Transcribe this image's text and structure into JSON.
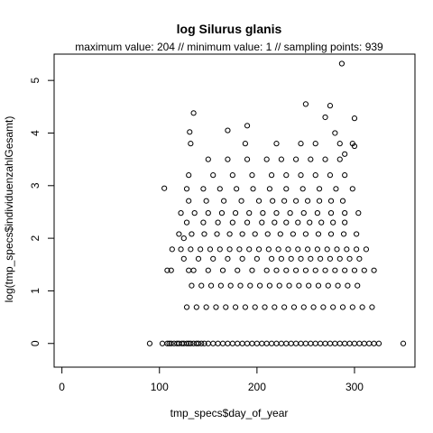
{
  "chart_data": {
    "type": "scatter",
    "title": "log Silurus glanis",
    "subtitle": "maximum value: 204  //  minimum value: 1  // sampling points: 939",
    "xlabel": "tmp_specs$day_of_year",
    "ylabel": "log(tmp_specs$individuenzahlGesamt)",
    "xlim": [
      -8,
      362
    ],
    "ylim": [
      -0.45,
      5.5
    ],
    "xticks": [
      0,
      100,
      200,
      300
    ],
    "yticks": [
      0,
      1,
      2,
      3,
      4,
      5
    ],
    "grid": false,
    "legend": "none",
    "point_color": "#000000",
    "series": [
      {
        "x": [
          90,
          103,
          108,
          110,
          112,
          115,
          118,
          120,
          123,
          125,
          128,
          130,
          132,
          135,
          138,
          140,
          143,
          146,
          150,
          155,
          160,
          165,
          170,
          175,
          180,
          185,
          190,
          195,
          200,
          205,
          210,
          215,
          220,
          225,
          230,
          235,
          240,
          245,
          250,
          255,
          260,
          265,
          270,
          275,
          280,
          285,
          290,
          295,
          300,
          305,
          310,
          315,
          320,
          325,
          350,
          128,
          138,
          148,
          158,
          168,
          178,
          188,
          198,
          208,
          218,
          228,
          238,
          248,
          258,
          268,
          278,
          288,
          298,
          308,
          318,
          133,
          143,
          153,
          163,
          173,
          183,
          193,
          203,
          213,
          223,
          233,
          243,
          253,
          263,
          273,
          283,
          293,
          303,
          108,
          112,
          130,
          135,
          150,
          165,
          180,
          195,
          210,
          220,
          230,
          240,
          250,
          260,
          270,
          280,
          290,
          300,
          310,
          320,
          125,
          140,
          155,
          170,
          185,
          200,
          215,
          225,
          235,
          245,
          255,
          265,
          275,
          285,
          295,
          305,
          113,
          122,
          132,
          142,
          152,
          162,
          172,
          182,
          192,
          202,
          212,
          222,
          232,
          242,
          252,
          262,
          272,
          282,
          292,
          302,
          312,
          120,
          133,
          146,
          159,
          172,
          185,
          198,
          211,
          224,
          237,
          250,
          263,
          276,
          289,
          302,
          128,
          145,
          160,
          175,
          190,
          205,
          218,
          230,
          242,
          254,
          266,
          278,
          290,
          122,
          136,
          150,
          164,
          178,
          192,
          206,
          220,
          234,
          248,
          262,
          276,
          290,
          304,
          130,
          148,
          166,
          184,
          202,
          216,
          228,
          240,
          252,
          264,
          276,
          288,
          128,
          145,
          162,
          179,
          196,
          213,
          230,
          247,
          264,
          281,
          298,
          130,
          155,
          175,
          195,
          215,
          230,
          245,
          260,
          275,
          290,
          150,
          170,
          190,
          210,
          225,
          240,
          255,
          270,
          285,
          132,
          188,
          220,
          245,
          260,
          285,
          298,
          131,
          135,
          170,
          190,
          275,
          300,
          105,
          125,
          250,
          270,
          280,
          290,
          300,
          287
        ],
        "y": [
          0,
          0,
          0,
          0,
          0,
          0,
          0,
          0,
          0,
          0,
          0,
          0,
          0,
          0,
          0,
          0,
          0,
          0,
          0,
          0,
          0,
          0,
          0,
          0,
          0,
          0,
          0,
          0,
          0,
          0,
          0,
          0,
          0,
          0,
          0,
          0,
          0,
          0,
          0,
          0,
          0,
          0,
          0,
          0,
          0,
          0,
          0,
          0,
          0,
          0,
          0,
          0,
          0,
          0,
          0,
          0.69,
          0.69,
          0.69,
          0.69,
          0.69,
          0.69,
          0.69,
          0.69,
          0.69,
          0.69,
          0.69,
          0.69,
          0.69,
          0.69,
          0.69,
          0.69,
          0.69,
          0.69,
          0.69,
          0.69,
          1.1,
          1.1,
          1.1,
          1.1,
          1.1,
          1.1,
          1.1,
          1.1,
          1.1,
          1.1,
          1.1,
          1.1,
          1.1,
          1.1,
          1.1,
          1.1,
          1.1,
          1.1,
          1.39,
          1.39,
          1.39,
          1.39,
          1.39,
          1.39,
          1.39,
          1.39,
          1.39,
          1.39,
          1.39,
          1.39,
          1.39,
          1.39,
          1.39,
          1.39,
          1.39,
          1.39,
          1.39,
          1.39,
          1.61,
          1.61,
          1.61,
          1.61,
          1.61,
          1.61,
          1.61,
          1.61,
          1.61,
          1.61,
          1.61,
          1.61,
          1.61,
          1.61,
          1.61,
          1.61,
          1.79,
          1.79,
          1.79,
          1.79,
          1.79,
          1.79,
          1.79,
          1.79,
          1.79,
          1.79,
          1.79,
          1.79,
          1.79,
          1.79,
          1.79,
          1.79,
          1.79,
          1.79,
          1.79,
          1.79,
          1.79,
          2.08,
          2.08,
          2.08,
          2.08,
          2.08,
          2.08,
          2.08,
          2.08,
          2.08,
          2.08,
          2.08,
          2.08,
          2.08,
          2.08,
          2.08,
          2.3,
          2.3,
          2.3,
          2.3,
          2.3,
          2.3,
          2.3,
          2.3,
          2.3,
          2.3,
          2.3,
          2.3,
          2.3,
          2.48,
          2.48,
          2.48,
          2.48,
          2.48,
          2.48,
          2.48,
          2.48,
          2.48,
          2.48,
          2.48,
          2.48,
          2.48,
          2.48,
          2.71,
          2.71,
          2.71,
          2.71,
          2.71,
          2.71,
          2.71,
          2.71,
          2.71,
          2.71,
          2.71,
          2.71,
          2.94,
          2.94,
          2.94,
          2.94,
          2.94,
          2.94,
          2.94,
          2.94,
          2.94,
          2.94,
          2.94,
          3.2,
          3.2,
          3.2,
          3.2,
          3.2,
          3.2,
          3.2,
          3.2,
          3.2,
          3.2,
          3.5,
          3.5,
          3.5,
          3.5,
          3.5,
          3.5,
          3.5,
          3.5,
          3.5,
          3.8,
          3.8,
          3.8,
          3.8,
          3.8,
          3.8,
          3.8,
          4.02,
          4.38,
          4.05,
          4.14,
          4.52,
          4.28,
          2.95,
          2.0,
          4.55,
          4.3,
          4.0,
          3.6,
          3.75,
          5.32
        ]
      }
    ]
  }
}
